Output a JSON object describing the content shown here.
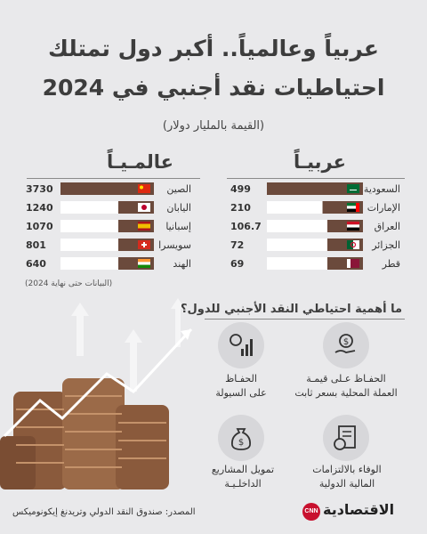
{
  "header": {
    "title_line1": "عربياً وعالمياً.. أكبر دول تمتلك",
    "title_line2": "احتياطيات نقد أجنبي في 2024",
    "unit": "(القيمة بالمليار دولار)"
  },
  "chart_data": [
    {
      "type": "bar",
      "title": "عالمـيـاً",
      "categories": [
        "الصين",
        "اليابان",
        "إسبانيا",
        "سويسرا",
        "الهند"
      ],
      "values": [
        3730,
        1240,
        1070,
        801,
        640
      ],
      "labels": [
        "3730",
        "1240",
        "1070",
        "801",
        "640"
      ],
      "flags": [
        "china",
        "japan",
        "spain",
        "switzerland",
        "india"
      ]
    },
    {
      "type": "bar",
      "title": "عربيـاً",
      "categories": [
        "السعودية",
        "الإمارات",
        "العراق",
        "الجزائر",
        "قطر"
      ],
      "values": [
        499,
        210,
        106.7,
        72,
        69
      ],
      "labels": [
        "499",
        "210",
        "106.7",
        "72",
        "69"
      ],
      "flags": [
        "saudi",
        "uae",
        "iraq",
        "algeria",
        "qatar"
      ]
    }
  ],
  "colors": {
    "bar": "#6b4a3c",
    "bar_light": "#ffffff",
    "text": "#3a3a3a"
  },
  "note": "(البيانات حتى نهاية 2024)",
  "benefits": {
    "question": "ما أهمية احتياطي النقد الأجنبي للدول؟",
    "items": [
      {
        "text_line1": "الحفـاظ عـلى قيمـة",
        "text_line2": "العملة المحلية بسعر ثابت",
        "icon": "hand-coin-icon"
      },
      {
        "text_line1": "الحفـاظ",
        "text_line2": "على السيولة",
        "icon": "coin-chart-icon"
      },
      {
        "text_line1": "الوفاء بالالتزامات",
        "text_line2": "المالية الدولية",
        "icon": "document-coin-icon"
      },
      {
        "text_line1": "تمويل المشاريع",
        "text_line2": "الداخلـيـة",
        "icon": "money-bag-icon"
      }
    ]
  },
  "footer": {
    "source": "المصدر: صندوق النقد الدولي وتريدنغ إيكونوميكس",
    "logo_badge": "CNN",
    "logo_text": "الاقتصادية"
  }
}
